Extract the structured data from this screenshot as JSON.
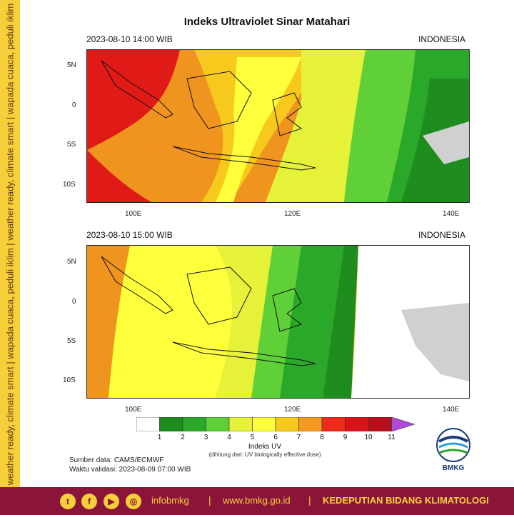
{
  "side_text": "weather ready, climate smart | wapada cuaca, peduli iklim | weather ready, climate smart | wapada cuaca, peduli iklim",
  "title": "Indeks Ultraviolet Sinar Matahari",
  "panels": [
    {
      "time_label": "2023-08-10  14:00 WIB",
      "region_label": "INDONESIA"
    },
    {
      "time_label": "2023-08-10  15:00 WIB",
      "region_label": "INDONESIA"
    }
  ],
  "lat_ticks": [
    "5N",
    "0",
    "5S",
    "10S"
  ],
  "lon_ticks": [
    "100E",
    "120E",
    "140E"
  ],
  "legend": {
    "title": "Indeks UV",
    "subtitle": "(dihitung dari: UV biologically effective dose)",
    "ticks": [
      "1",
      "2",
      "3",
      "4",
      "5",
      "6",
      "7",
      "8",
      "9",
      "10",
      "11"
    ],
    "colors": [
      "#ffffff",
      "#1e8c1e",
      "#2aa82a",
      "#5fd038",
      "#e6f23a",
      "#ffff3c",
      "#f7c91c",
      "#f29a1f",
      "#ee2a1a",
      "#d8141a",
      "#b8101a",
      "#b04ad8"
    ]
  },
  "source_line": "Sumber data: CAMS/ECMWF",
  "validity_line": "Waktu validasi: 2023-08-09 07:00 WIB",
  "logo_text": "BMKG",
  "footer": {
    "handle": "infobmkg",
    "sep1": "|",
    "website": "www.bmkg.go.id",
    "sep2": "|",
    "department": "KEDEPUTIAN BIDANG KLIMATOLOGI",
    "social_icons": [
      "twitter-icon",
      "facebook-icon",
      "youtube-icon",
      "instagram-icon"
    ]
  }
}
